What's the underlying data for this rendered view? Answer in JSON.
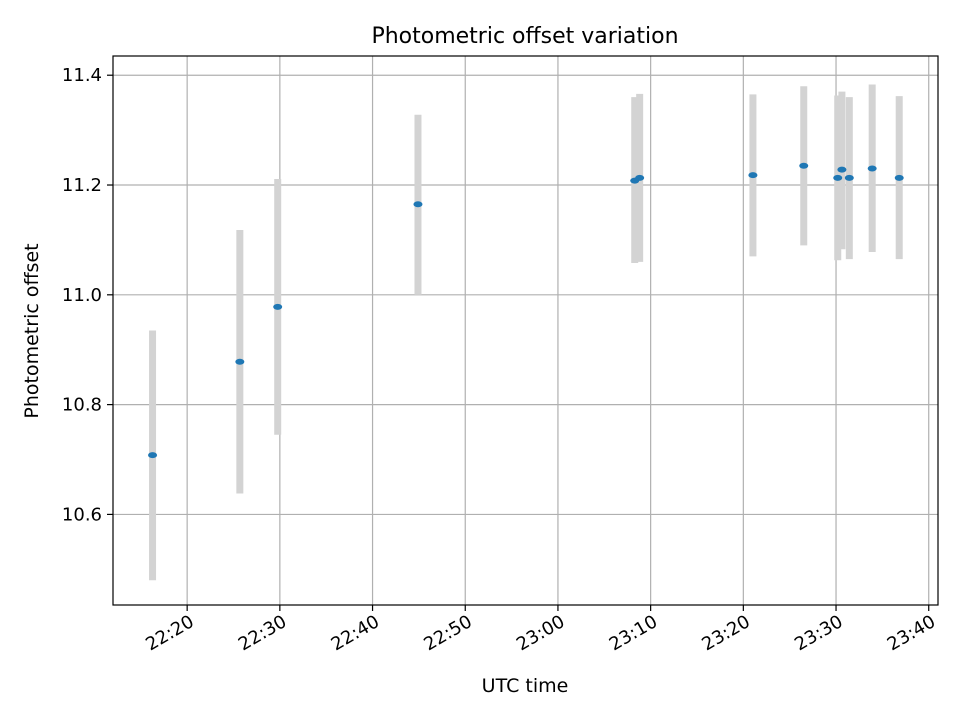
{
  "chart_data": {
    "type": "scatter",
    "title": "Photometric offset variation",
    "xlabel": "UTC time",
    "ylabel": "Photometric offset",
    "grid": true,
    "x_tick_labels": [
      "22:20",
      "22:30",
      "22:40",
      "22:50",
      "23:00",
      "23:10",
      "23:20",
      "23:30",
      "23:40"
    ],
    "y_tick_labels": [
      "10.6",
      "10.8",
      "11.0",
      "11.2",
      "11.4"
    ],
    "y_ticks": [
      10.6,
      10.8,
      11.0,
      11.2,
      11.4
    ],
    "xlim": [
      "22:12:00",
      "23:41:00"
    ],
    "ylim": [
      10.435,
      11.435
    ],
    "points": [
      {
        "time": "22:16:16",
        "y": 10.708,
        "err_low": 10.48,
        "err_high": 10.935
      },
      {
        "time": "22:25:41",
        "y": 10.878,
        "err_low": 10.638,
        "err_high": 11.118
      },
      {
        "time": "22:29:46",
        "y": 10.978,
        "err_low": 10.745,
        "err_high": 11.211
      },
      {
        "time": "22:44:54",
        "y": 11.165,
        "err_low": 11.0,
        "err_high": 11.328
      },
      {
        "time": "23:08:17",
        "y": 11.208,
        "err_low": 11.058,
        "err_high": 11.36
      },
      {
        "time": "23:08:49",
        "y": 11.213,
        "err_low": 11.06,
        "err_high": 11.366
      },
      {
        "time": "23:21:02",
        "y": 11.218,
        "err_low": 11.07,
        "err_high": 11.365
      },
      {
        "time": "23:26:31",
        "y": 11.235,
        "err_low": 11.09,
        "err_high": 11.38
      },
      {
        "time": "23:30:11",
        "y": 11.213,
        "err_low": 11.063,
        "err_high": 11.363
      },
      {
        "time": "23:30:38",
        "y": 11.228,
        "err_low": 11.083,
        "err_high": 11.37
      },
      {
        "time": "23:31:26",
        "y": 11.213,
        "err_low": 11.065,
        "err_high": 11.36
      },
      {
        "time": "23:33:54",
        "y": 11.23,
        "err_low": 11.078,
        "err_high": 11.383
      },
      {
        "time": "23:36:49",
        "y": 11.213,
        "err_low": 11.065,
        "err_high": 11.362
      }
    ],
    "colors": {
      "point": "#1f77b4",
      "errorbar": "#d3d3d3",
      "grid": "#b0b0b0",
      "axes": "#000000"
    }
  }
}
